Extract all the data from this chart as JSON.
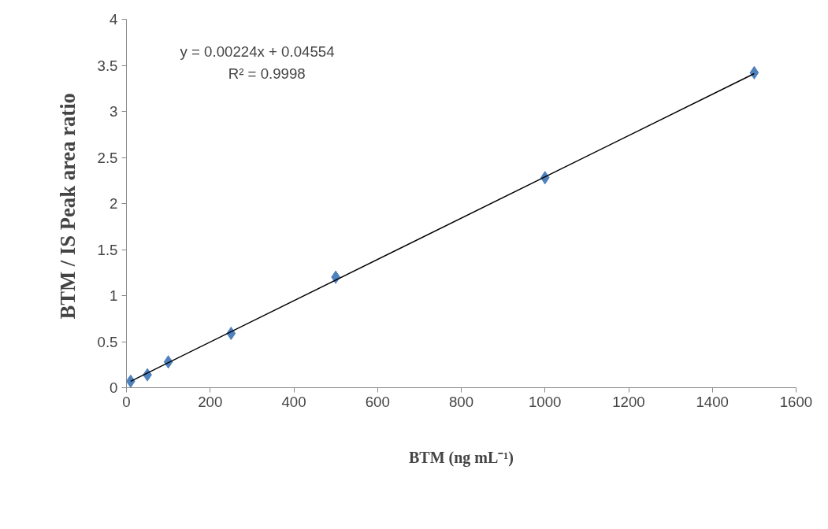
{
  "chart_data": {
    "type": "scatter",
    "xlabel": "BTM (ng mL⁻¹)",
    "ylabel": "BTM / IS  Peak area ratio",
    "xlim": [
      0,
      1600
    ],
    "xticks": [
      0,
      200,
      400,
      600,
      800,
      1000,
      1200,
      1400,
      1600
    ],
    "ylim": [
      0,
      4
    ],
    "yticks": [
      0,
      0.5,
      1,
      1.5,
      2,
      2.5,
      3,
      3.5,
      4
    ],
    "grid": false,
    "marker": "diamond",
    "annotations": [
      "y = 0.00224x + 0.04554",
      "R² = 0.9998"
    ],
    "series": [
      {
        "color": "#4f81bd",
        "x": [
          10,
          50,
          100,
          250,
          500,
          1000,
          1500
        ],
        "values": [
          0.07,
          0.14,
          0.28,
          0.59,
          1.2,
          2.28,
          3.42
        ]
      },
      {
        "type": "line",
        "color": "#000000",
        "marker": "none",
        "x": [
          10,
          1500
        ],
        "values": [
          0.07,
          3.41
        ]
      }
    ]
  }
}
